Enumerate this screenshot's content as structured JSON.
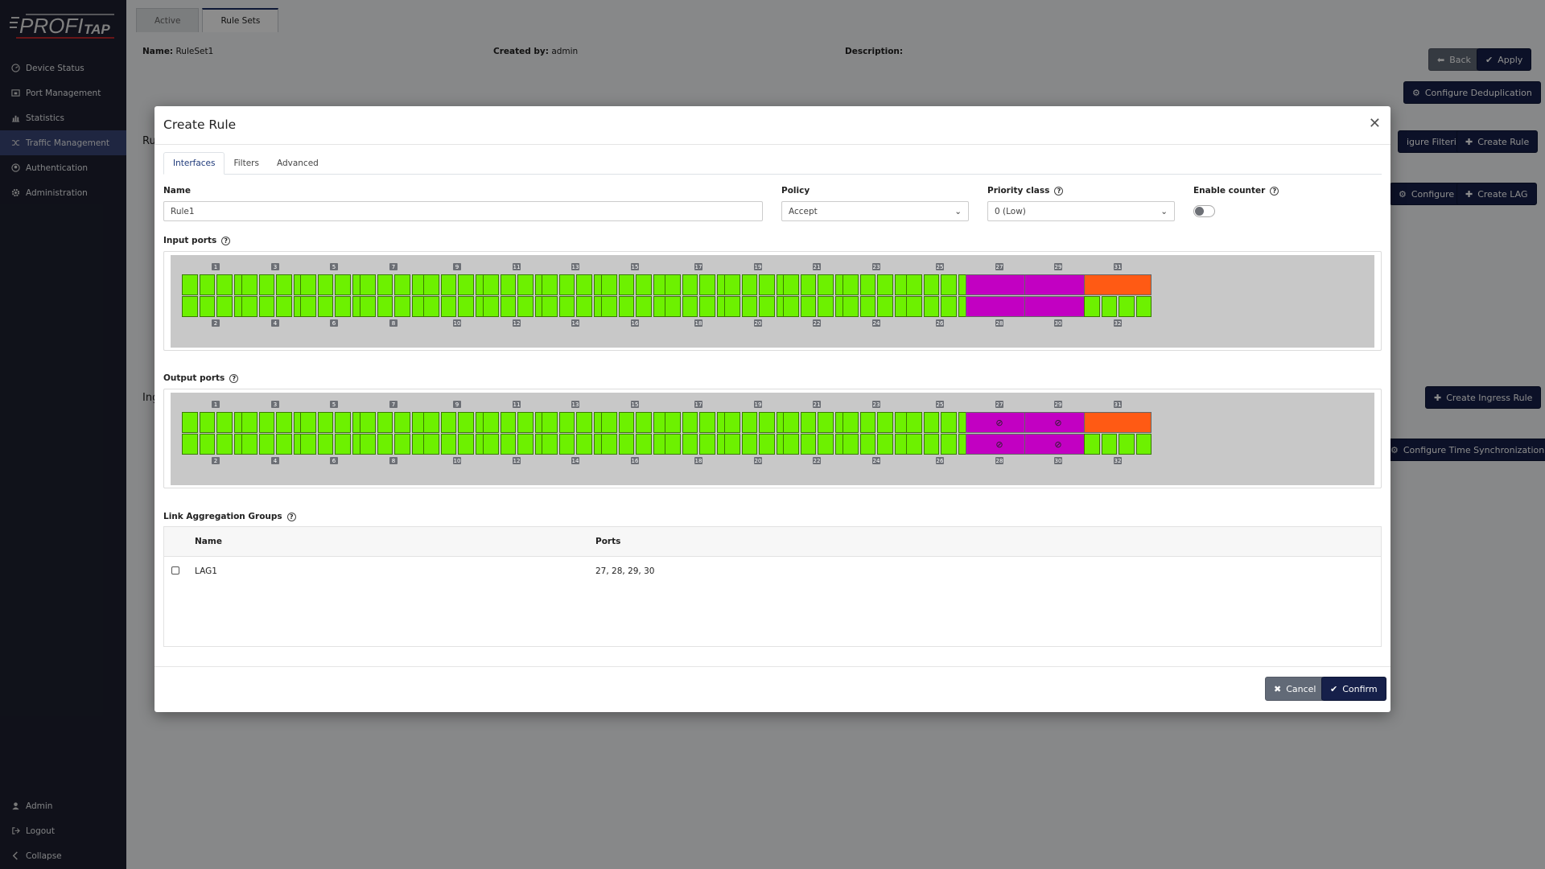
{
  "brand": {
    "logo_text": "PROFITAP"
  },
  "sidebar": {
    "items": [
      {
        "label": "Device Status",
        "icon": "gauge-icon"
      },
      {
        "label": "Port Management",
        "icon": "port-icon"
      },
      {
        "label": "Statistics",
        "icon": "bar-chart-icon"
      },
      {
        "label": "Traffic Management",
        "icon": "shuffle-icon",
        "active": true
      },
      {
        "label": "Authentication",
        "icon": "user-circle-icon"
      },
      {
        "label": "Administration",
        "icon": "gear-icon"
      }
    ],
    "bottom": [
      {
        "label": "Admin",
        "icon": "user-icon"
      },
      {
        "label": "Logout",
        "icon": "logout-icon"
      },
      {
        "label": "Collapse",
        "icon": "chevron-left-icon"
      }
    ]
  },
  "page": {
    "tabs": [
      "Active",
      "Rule Sets"
    ],
    "name_label": "Name:",
    "name_value": "RuleSet1",
    "created_label": "Created by:",
    "created_value": "admin",
    "description_label": "Description:",
    "section_rules_partial": "Ru",
    "section_ingress_partial": "Ing",
    "buttons": {
      "back": "Back",
      "apply": "Apply",
      "configure_dedup": "Configure Deduplication",
      "configure_filtering": "igure Filtering",
      "create_rule": "Create Rule",
      "configure": "Configure",
      "create_lag": "Create LAG",
      "create_ingress_rule": "Create Ingress Rule",
      "configure_time_sync": "Configure Time Synchronization"
    }
  },
  "modal": {
    "title": "Create Rule",
    "tabs": [
      "Interfaces",
      "Filters",
      "Advanced"
    ],
    "active_tab": "Interfaces",
    "name_label": "Name",
    "name_value": "Rule1",
    "policy_label": "Policy",
    "policy_value": "Accept",
    "priority_label": "Priority class",
    "priority_value": "0 (Low)",
    "enable_counter_label": "Enable counter",
    "enable_counter_on": false,
    "input_ports_label": "Input ports",
    "output_ports_label": "Output ports",
    "ports_top": [
      "1",
      "3",
      "5",
      "7",
      "9",
      "11",
      "13",
      "15",
      "17",
      "19",
      "21",
      "23",
      "25",
      "27",
      "29",
      "31"
    ],
    "ports_bottom": [
      "2",
      "4",
      "6",
      "8",
      "10",
      "12",
      "14",
      "16",
      "18",
      "20",
      "22",
      "24",
      "26",
      "28",
      "30",
      "32"
    ],
    "port_states": {
      "lag_ports": [
        "27",
        "28",
        "29",
        "30"
      ],
      "lag_color": "#c200c2",
      "single_band_port": "31",
      "single_band_color": "#ff5a14",
      "available_color": "#6df100",
      "blocked_symbol": "⊘"
    },
    "lag_label": "Link Aggregation Groups",
    "lag_columns": [
      "Name",
      "Ports"
    ],
    "lag_rows": [
      {
        "name": "LAG1",
        "ports": "27, 28, 29, 30"
      }
    ],
    "cancel_label": "Cancel",
    "confirm_label": "Confirm"
  }
}
